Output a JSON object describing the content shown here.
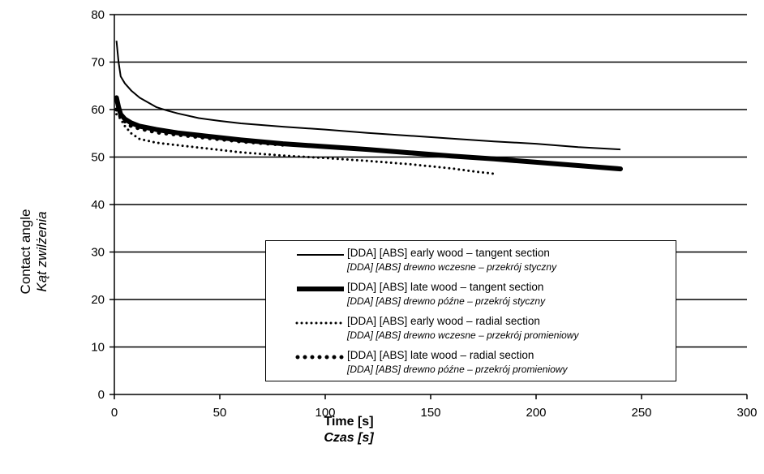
{
  "chart_data": {
    "type": "line",
    "xlabel": "Time [s]",
    "xlabel_sub": "Czas [s]",
    "ylabel": "Contact angle",
    "ylabel_sub": "Kąt zwilżenia",
    "xlim": [
      0,
      300
    ],
    "ylim": [
      0,
      80
    ],
    "x_ticks": [
      "0",
      "50",
      "100",
      "150",
      "200",
      "250",
      "300"
    ],
    "y_ticks": [
      "0",
      "10",
      "20",
      "30",
      "40",
      "50",
      "60",
      "70",
      "80"
    ],
    "y_gridlines": [
      10,
      20,
      30,
      40,
      50,
      60,
      70,
      80
    ],
    "grid": "horizontal",
    "legend_position": "bottom-right",
    "series": [
      {
        "name": "[DDA] [ABS] early wood – tangent section",
        "name_sub": "[DDA] [ABS] drewno wczesne – przekrój styczny",
        "style": "thin",
        "x": [
          1,
          2,
          3,
          5,
          8,
          12,
          16,
          20,
          25,
          30,
          40,
          50,
          60,
          80,
          100,
          120,
          140,
          160,
          180,
          200,
          220,
          240
        ],
        "y": [
          74.5,
          70,
          67,
          65.5,
          64,
          62.5,
          61.5,
          60.5,
          59.8,
          59.2,
          58.2,
          57.6,
          57.1,
          56.4,
          55.8,
          55.1,
          54.5,
          53.9,
          53.3,
          52.8,
          52.1,
          51.6
        ]
      },
      {
        "name": "[DDA] [ABS] late wood – tangent section",
        "name_sub": "[DDA] [ABS] drewno późne – przekrój styczny",
        "style": "thick",
        "x": [
          1,
          2,
          3,
          5,
          8,
          12,
          20,
          30,
          40,
          60,
          80,
          100,
          120,
          140,
          160,
          180,
          200,
          220,
          240
        ],
        "y": [
          62.5,
          60.5,
          59,
          58,
          57.2,
          56.5,
          55.8,
          55.1,
          54.6,
          53.6,
          52.8,
          52.2,
          51.6,
          50.9,
          50.2,
          49.6,
          48.9,
          48.2,
          47.5
        ]
      },
      {
        "name": "[DDA] [ABS] early wood – radial section",
        "name_sub": "[DDA] [ABS] drewno wczesne – przekrój promieniowy",
        "style": "dotted-small",
        "x": [
          1,
          3,
          5,
          8,
          12,
          20,
          30,
          40,
          50,
          60,
          80,
          100,
          120,
          140,
          160,
          170,
          180
        ],
        "y": [
          59,
          58,
          56.5,
          55,
          53.8,
          53,
          52.5,
          52,
          51.5,
          51,
          50.3,
          49.8,
          49.2,
          48.5,
          47.6,
          47,
          46.5
        ]
      },
      {
        "name": "[DDA] [ABS] late wood – radial section",
        "name_sub": "[DDA] [ABS] drewno późne – przekrój promieniowy",
        "style": "dotted-large",
        "x": [
          1,
          3,
          5,
          8,
          12,
          20,
          30,
          40,
          60,
          80
        ],
        "y": [
          60,
          58.5,
          57.5,
          56.5,
          56,
          55.2,
          54.7,
          54.2,
          53.3,
          52.6
        ]
      }
    ]
  }
}
